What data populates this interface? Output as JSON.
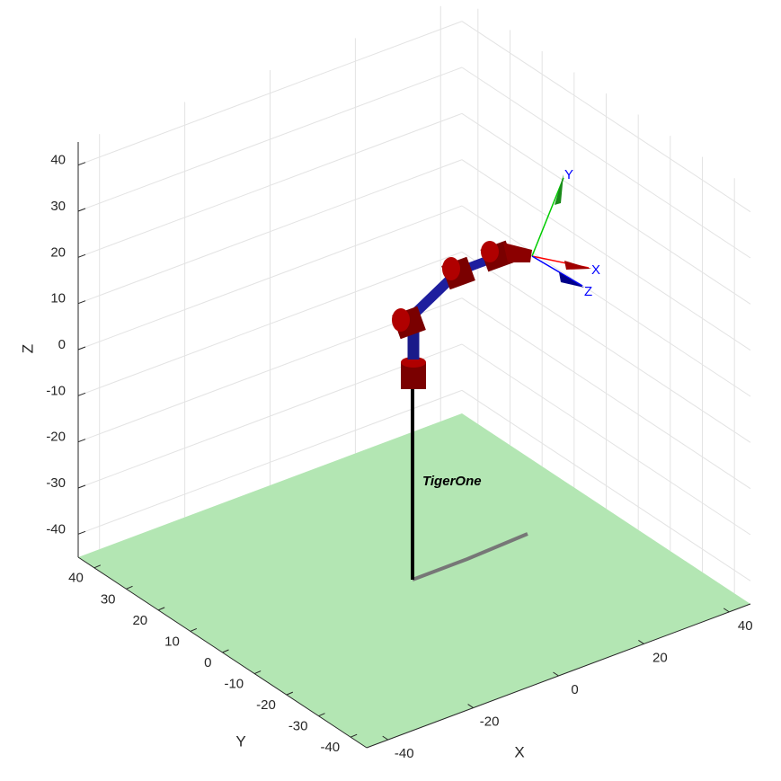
{
  "chart_data": {
    "type": "plot3d",
    "xlabel": "X",
    "ylabel": "Y",
    "zlabel": "Z",
    "xlim": [
      -45,
      45
    ],
    "ylim": [
      -45,
      45
    ],
    "zlim": [
      -45,
      45
    ],
    "xticks": [
      -40,
      -20,
      0,
      20,
      40
    ],
    "yticks": [
      -40,
      -30,
      -20,
      -10,
      0,
      10,
      20,
      30,
      40
    ],
    "zticks": [
      -40,
      -30,
      -20,
      -10,
      0,
      10,
      20,
      30,
      40
    ],
    "grid": true,
    "floor_color": "#b3e6b3",
    "robot_name": "TigerOne",
    "frame_labels": [
      "X",
      "Y",
      "Z"
    ]
  }
}
